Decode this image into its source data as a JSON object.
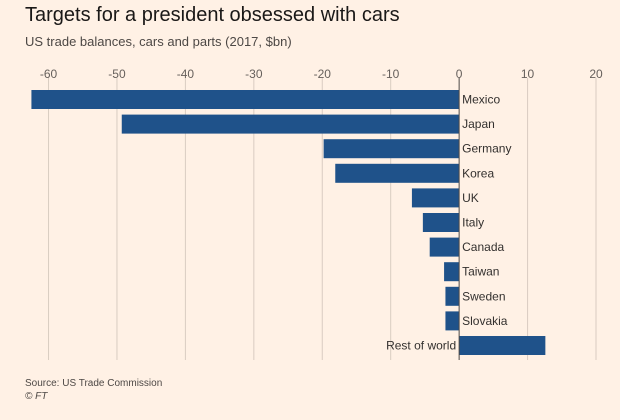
{
  "header": {
    "title": "Targets for a president obsessed with cars",
    "subtitle": "US trade balances, cars and parts (2017, $bn)"
  },
  "footer": {
    "source": "Source: US Trade Commission",
    "credit": "© FT"
  },
  "colors": {
    "bar": "#1f528a",
    "grid": "#d9ccc1",
    "zero_line": "#4d4845",
    "background": "#fff1e5"
  },
  "chart_data": {
    "type": "bar",
    "orientation": "horizontal",
    "title": "Targets for a president obsessed with cars",
    "subtitle": "US trade balances, cars and parts (2017, $bn)",
    "xlim": [
      -63,
      20
    ],
    "ticks": [
      -60,
      -50,
      -40,
      -30,
      -20,
      -10,
      0,
      10,
      20
    ],
    "tick_labels": [
      "-60",
      "-50",
      "-40",
      "-30",
      "-20",
      "-10",
      "0",
      "10",
      "20"
    ],
    "grid": true,
    "categories": [
      "Mexico",
      "Japan",
      "Germany",
      "Korea",
      "UK",
      "Italy",
      "Canada",
      "Taiwan",
      "Sweden",
      "Slovakia",
      "Rest of world"
    ],
    "values": [
      -62.5,
      -49.3,
      -19.8,
      -18.1,
      -6.9,
      -5.3,
      -4.3,
      -2.2,
      -2.0,
      -2.0,
      12.6
    ]
  }
}
